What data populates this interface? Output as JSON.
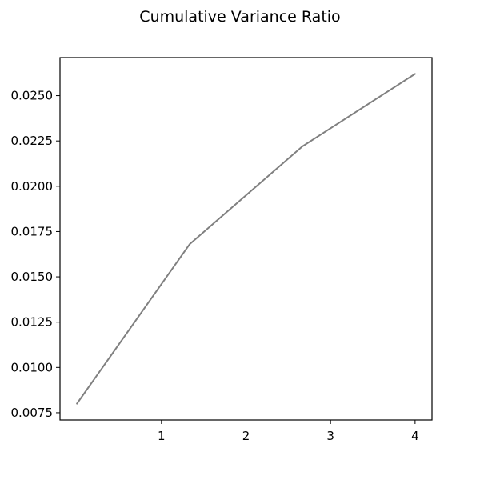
{
  "chart_data": {
    "type": "line",
    "title": "Cumulative Variance Ratio",
    "xlabel": "",
    "ylabel": "",
    "x": [
      0,
      1.3333,
      2.6667,
      4
    ],
    "series": [
      {
        "values": [
          0.008,
          0.0168,
          0.0222,
          0.0262
        ],
        "color": "#808080"
      }
    ],
    "xlim": [
      -0.2,
      4.2
    ],
    "ylim": [
      0.0071,
      0.0271
    ],
    "xticks": [
      1,
      2,
      3,
      4
    ],
    "xtick_labels": [
      "1",
      "2",
      "3",
      "4"
    ],
    "yticks": [
      0.0075,
      0.01,
      0.0125,
      0.015,
      0.0175,
      0.02,
      0.0225,
      0.025
    ],
    "ytick_labels": [
      "0.0075",
      "0.0100",
      "0.0125",
      "0.0150",
      "0.0175",
      "0.0200",
      "0.0225",
      "0.0250"
    ],
    "grid": false,
    "legend": "none"
  }
}
